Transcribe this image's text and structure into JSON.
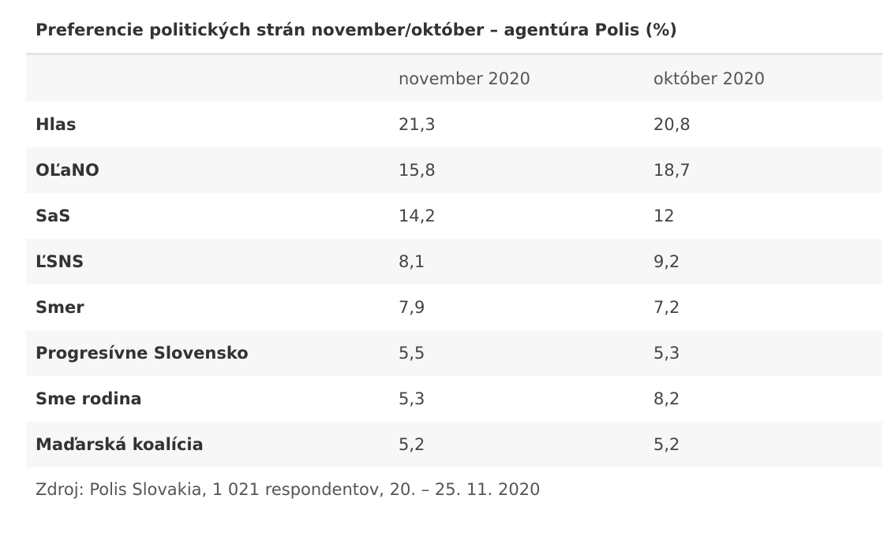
{
  "title": "Preferencie politických strán november/október – agentúra Polis (%)",
  "columns": [
    "",
    "november 2020",
    "október 2020"
  ],
  "rows": [
    {
      "party": "Hlas",
      "november": "21,3",
      "oktober": "20,8"
    },
    {
      "party": "OĽaNO",
      "november": "15,8",
      "oktober": "18,7"
    },
    {
      "party": "SaS",
      "november": "14,2",
      "oktober": "12"
    },
    {
      "party": "ĽSNS",
      "november": "8,1",
      "oktober": "9,2"
    },
    {
      "party": "Smer",
      "november": "7,9",
      "oktober": "7,2"
    },
    {
      "party": "Progresívne Slovensko",
      "november": "5,5",
      "oktober": "5,3"
    },
    {
      "party": "Sme rodina",
      "november": "5,3",
      "oktober": "8,2"
    },
    {
      "party": "Maďarská koalícia",
      "november": "5,2",
      "oktober": "5,2"
    }
  ],
  "source": "Zdroj: Polis Slovakia, 1 021 respondentov, 20. – 25. 11. 2020"
}
